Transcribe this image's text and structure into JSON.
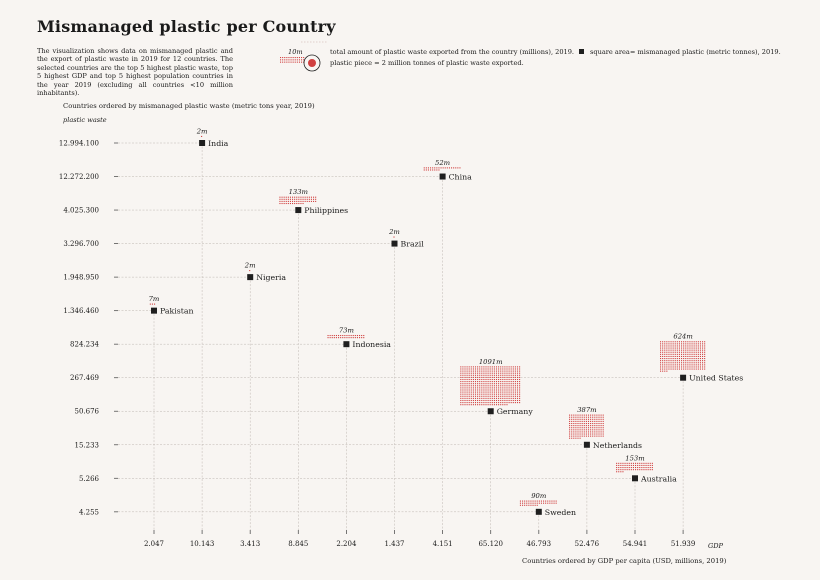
{
  "page": {
    "title": "Mismanaged plastic per Country",
    "description": "The visualization shows data on mismanaged plastic and the export of plastic waste in 2019 for 12 countries. The selected countries are the top 5 highest plastic waste, top 5 highest GDP and top 5 highest population countries in the year 2019 (excluding all countries <10 million inhabitants).",
    "legend_example_value": "10m",
    "legend_exported": "total amount of plastic waste exported from the country (millions), 2019.",
    "legend_piece": "plastic piece = 2 million tonnes of plastic waste exported.",
    "legend_square": "square area= mismanaged plastic (metric tonnes), 2019.",
    "y_subheading": "Countries ordered by mismanaged plastic waste (metric tons year, 2019)",
    "y_axis_title": "plastic waste",
    "x_axis_title": "Countries ordered by GDP per capita (USD, millions, 2019)",
    "x_axis_name": "GDP"
  },
  "colors": {
    "background": "#f8f5f2",
    "marker": "#1f1f1f",
    "plastic": "#d04040",
    "grid": "#bdb6b0"
  },
  "chart_data": {
    "type": "scatter",
    "title": "Mismanaged plastic per Country",
    "xlabel": "Countries ordered by GDP per capita (USD, millions, 2019)",
    "ylabel": "Countries ordered by mismanaged plastic waste (metric tons year, 2019)",
    "x_ticks": [
      "2.047",
      "10.143",
      "3.413",
      "8.845",
      "2.204",
      "1.437",
      "4.151",
      "65.120",
      "46.793",
      "52.476",
      "54.941",
      "51.939"
    ],
    "y_ticks": [
      "12.994.100",
      "12.272.200",
      "4.025.300",
      "3.296.700",
      "1.948.950",
      "1.346.460",
      "824.234",
      "267.469",
      "50.676",
      "15.233",
      "5.266",
      "4.255"
    ],
    "points": [
      {
        "country": "India",
        "gdp": "10.143",
        "waste": "12.994.100",
        "exported": "2m",
        "pieces": 1
      },
      {
        "country": "China",
        "gdp": "4.151",
        "waste": "12.272.200",
        "exported": "52m",
        "pieces": 26
      },
      {
        "country": "Philippines",
        "gdp": "8.845",
        "waste": "4.025.300",
        "exported": "133m",
        "pieces": 66
      },
      {
        "country": "Brazil",
        "gdp": "1.437",
        "waste": "3.296.700",
        "exported": "2m",
        "pieces": 1
      },
      {
        "country": "Nigeria",
        "gdp": "3.413",
        "waste": "1.948.950",
        "exported": "2m",
        "pieces": 1
      },
      {
        "country": "Pakistan",
        "gdp": "2.047",
        "waste": "1.346.460",
        "exported": "7m",
        "pieces": 3
      },
      {
        "country": "Indonesia",
        "gdp": "2.204",
        "waste": "824.234",
        "exported": "73m",
        "pieces": 36
      },
      {
        "country": "United States",
        "gdp": "51.939",
        "waste": "267.469",
        "exported": "624m",
        "pieces": 312
      },
      {
        "country": "Germany",
        "gdp": "65.120",
        "waste": "50.676",
        "exported": "1091m",
        "pieces": 545
      },
      {
        "country": "Netherlands",
        "gdp": "52.476",
        "waste": "15.233",
        "exported": "387m",
        "pieces": 193
      },
      {
        "country": "Australia",
        "gdp": "54.941",
        "waste": "5.266",
        "exported": "153m",
        "pieces": 76
      },
      {
        "country": "Sweden",
        "gdp": "46.793",
        "waste": "4.255",
        "exported": "90m",
        "pieces": 45
      }
    ]
  }
}
